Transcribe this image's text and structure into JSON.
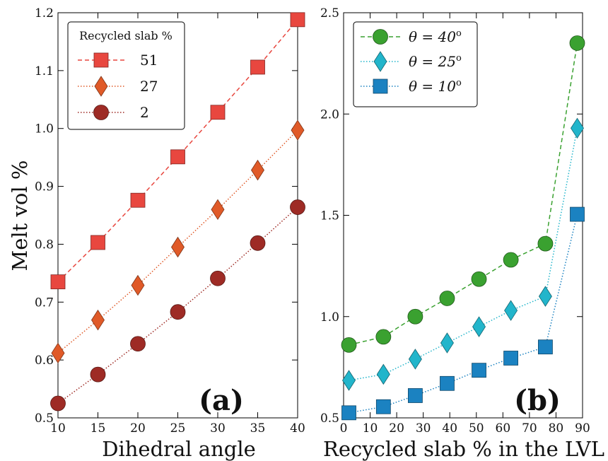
{
  "chart_data": [
    {
      "type": "line",
      "panel_label": "(a)",
      "xlabel": "Dihedral angle",
      "ylabel": "Melt vol %",
      "xlim": [
        10,
        40
      ],
      "ylim": [
        0.5,
        1.2
      ],
      "xticks": [
        "10",
        "15",
        "20",
        "25",
        "30",
        "35",
        "40"
      ],
      "yticks": [
        "0.5",
        "0.6",
        "0.7",
        "0.8",
        "0.9",
        "1.0",
        "1.1",
        "1.2"
      ],
      "grid": false,
      "legend": {
        "title": "Recycled slab %",
        "placement": "top-left"
      },
      "x": [
        10,
        15,
        20,
        25,
        30,
        35,
        40
      ],
      "series": [
        {
          "name": "51",
          "marker": "square",
          "line": "dashed",
          "color": "#e8473f",
          "values": [
            0.735,
            0.803,
            0.876,
            0.951,
            1.028,
            1.106,
            1.188
          ]
        },
        {
          "name": "27",
          "marker": "diamond",
          "line": "dotted",
          "color": "#e05a28",
          "values": [
            0.612,
            0.669,
            0.729,
            0.795,
            0.86,
            0.928,
            0.997
          ]
        },
        {
          "name": "2",
          "marker": "circle",
          "line": "dotted",
          "color": "#9e2b25",
          "values": [
            0.525,
            0.575,
            0.628,
            0.683,
            0.741,
            0.802,
            0.864
          ]
        }
      ]
    },
    {
      "type": "line",
      "panel_label": "(b)",
      "xlabel": "Recycled slab % in the LVL",
      "ylabel": "",
      "xlim": [
        0,
        90
      ],
      "ylim": [
        0.5,
        2.5
      ],
      "xticks": [
        "0",
        "10",
        "20",
        "30",
        "40",
        "50",
        "60",
        "70",
        "80",
        "90"
      ],
      "yticks": [
        "0.5",
        "1.0",
        "1.5",
        "2.0",
        "2.5"
      ],
      "grid": false,
      "legend": {
        "title": "",
        "placement": "top-left"
      },
      "x": [
        2,
        15,
        27,
        39,
        51,
        63,
        76,
        88
      ],
      "series": [
        {
          "name_prefix": "θ = 40",
          "name_sup": "o",
          "marker": "circle",
          "line": "dashed",
          "color": "#3aa130",
          "values": [
            0.86,
            0.9,
            1.0,
            1.09,
            1.185,
            1.28,
            1.36,
            2.35
          ]
        },
        {
          "name_prefix": "θ = 25",
          "name_sup": "o",
          "marker": "diamond",
          "line": "dotted",
          "color": "#22b5cb",
          "values": [
            0.685,
            0.715,
            0.79,
            0.87,
            0.95,
            1.03,
            1.1,
            1.93
          ]
        },
        {
          "name_prefix": "θ = 10",
          "name_sup": "o",
          "marker": "square",
          "line": "dotted",
          "color": "#1b82c1",
          "values": [
            0.525,
            0.555,
            0.61,
            0.67,
            0.735,
            0.795,
            0.85,
            1.505
          ]
        }
      ]
    }
  ]
}
